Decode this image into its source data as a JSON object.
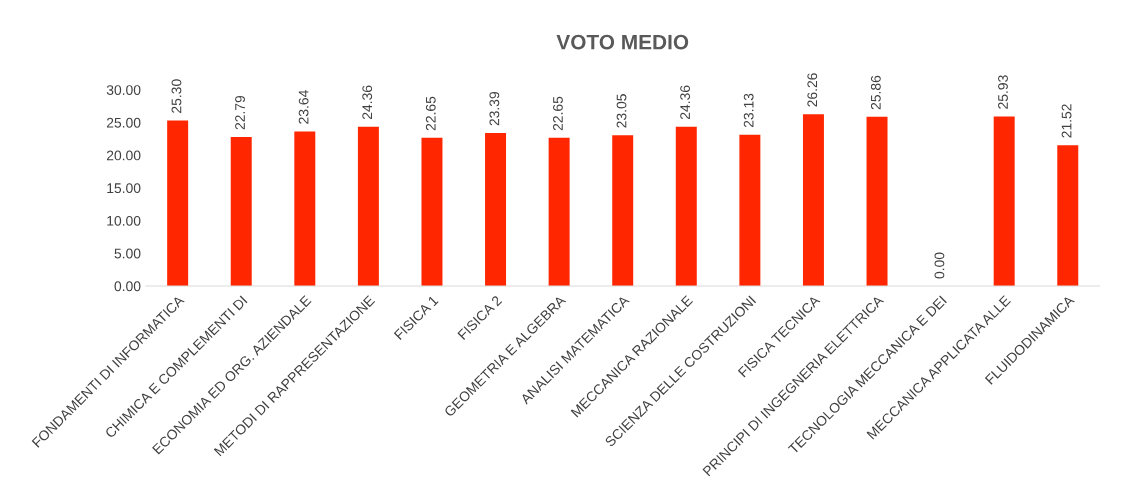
{
  "chart_data": {
    "type": "bar",
    "title": "VOTO MEDIO",
    "categories": [
      "FONDAMENTI DI INFORMATICA",
      "CHIMICA E COMPLEMENTI DI",
      "ECONOMIA ED ORG. AZIENDALE",
      "METODI DI RAPPRESENTAZIONE",
      "FISICA 1",
      "FISICA 2",
      "GEOMETRIA E ALGEBRA",
      "ANALISI MATEMATICA",
      "MECCANICA RAZIONALE",
      "SCIENZA DELLE COSTRUZIONI",
      "FISICA TECNICA",
      "PRINCIPI DI INGEGNERIA ELETTRICA",
      "TECNOLOGIA MECCANICA E DEI",
      "MECCANICA APPLICATA ALLE",
      "FLUIDODINAMICA"
    ],
    "values": [
      25.3,
      22.79,
      23.64,
      24.36,
      22.65,
      23.39,
      22.65,
      23.05,
      24.36,
      23.13,
      26.26,
      25.86,
      0.0,
      25.93,
      21.52
    ],
    "value_labels": [
      "25.30",
      "22.79",
      "23.64",
      "24.36",
      "22.65",
      "23.39",
      "22.65",
      "23.05",
      "24.36",
      "23.13",
      "26.26",
      "25.86",
      "0.00",
      "25.93",
      "21.52"
    ],
    "color": "#ff2600",
    "ylim": [
      0,
      30
    ],
    "yticks": [
      {
        "value": 0,
        "label": "0.00"
      },
      {
        "value": 5,
        "label": "5.00"
      },
      {
        "value": 10,
        "label": "10.00"
      },
      {
        "value": 15,
        "label": "15.00"
      },
      {
        "value": 20,
        "label": "20.00"
      },
      {
        "value": 25,
        "label": "25.00"
      },
      {
        "value": 30,
        "label": "30.00"
      }
    ],
    "grid": false,
    "legend": false
  }
}
